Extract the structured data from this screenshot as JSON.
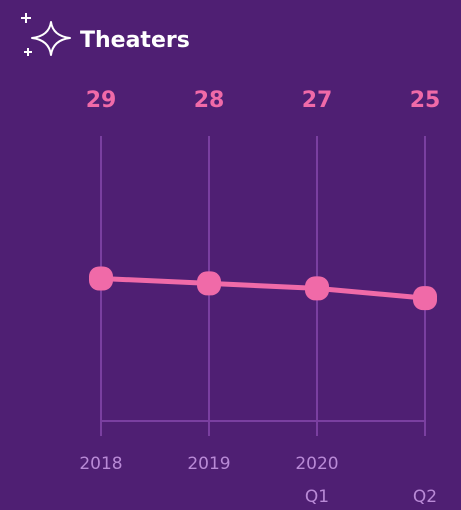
{
  "chart_data": {
    "type": "line",
    "title": "Theaters",
    "categories": [
      "2018",
      "2019",
      "2020",
      null
    ],
    "subcategories": [
      null,
      null,
      "Q1",
      "Q2"
    ],
    "values": [
      29,
      28,
      27,
      25
    ],
    "color": "#f06aa8",
    "ylim": [
      0,
      58
    ]
  }
}
